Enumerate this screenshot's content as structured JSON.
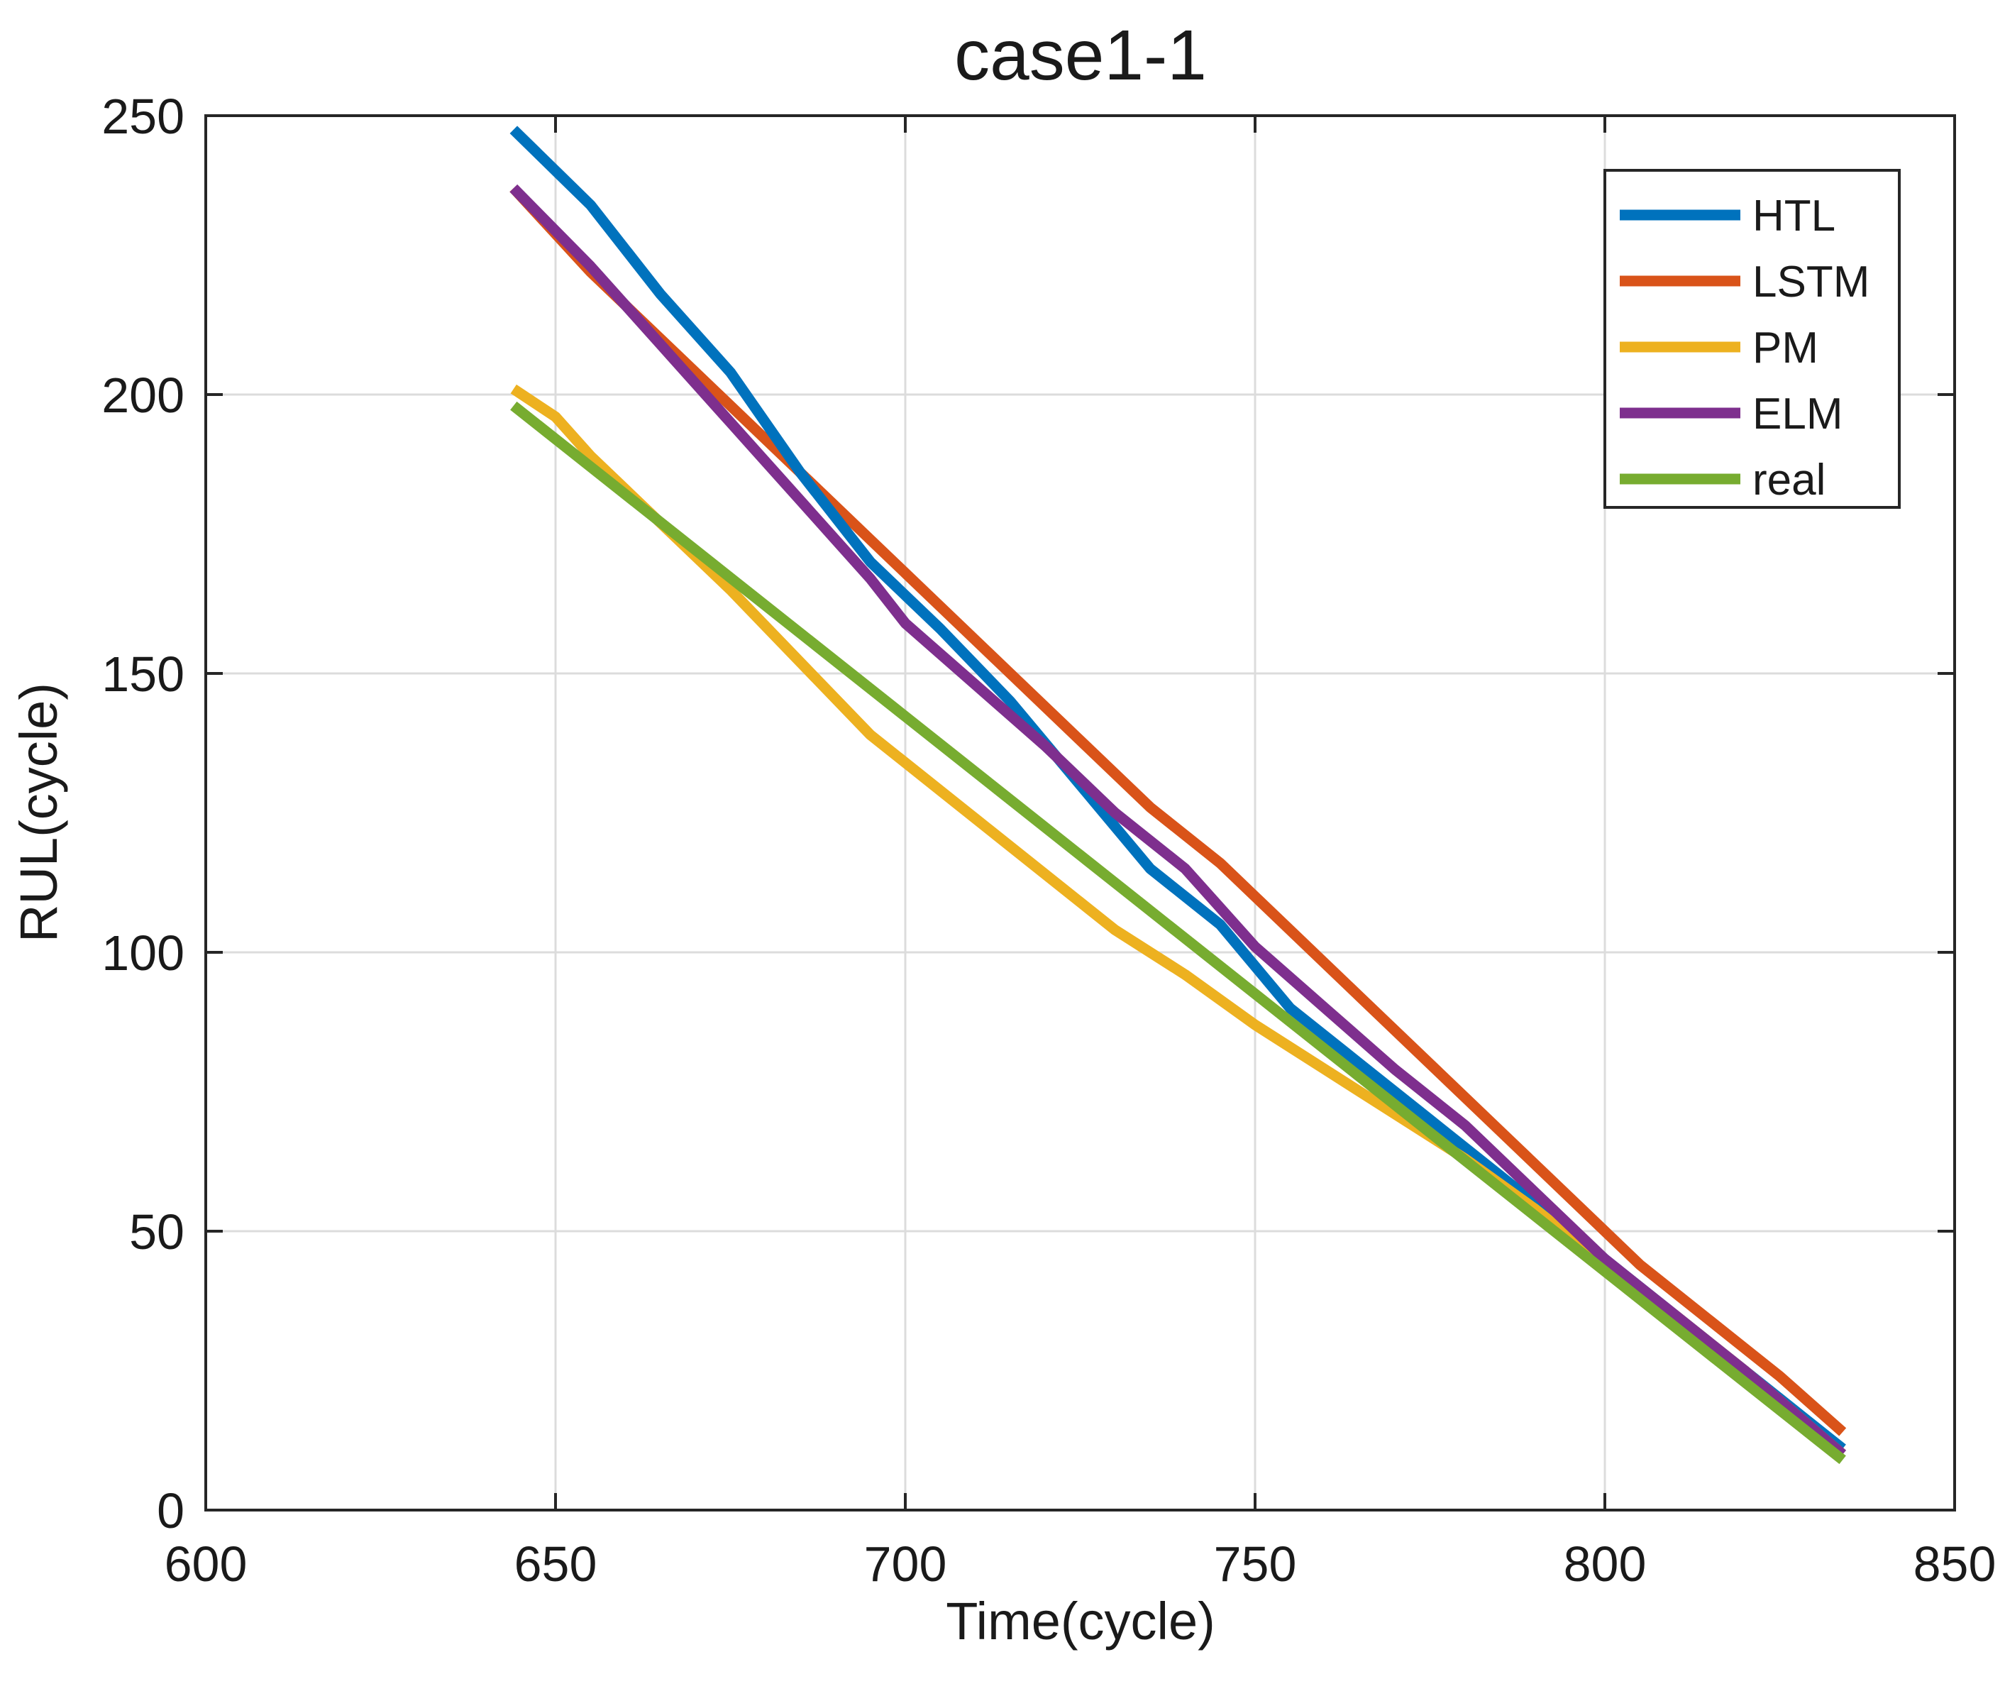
{
  "chart_data": {
    "type": "line",
    "title": "case1-1",
    "xlabel": "Time(cycle)",
    "ylabel": "RUL(cycle)",
    "xlim": [
      600,
      850
    ],
    "ylim": [
      0,
      250
    ],
    "xticks": [
      600,
      650,
      700,
      750,
      800,
      850
    ],
    "yticks": [
      0,
      50,
      100,
      150,
      200,
      250
    ],
    "grid": true,
    "legend_position": "top-right",
    "series": [
      {
        "name": "HTL",
        "color": "#0072BD",
        "points": [
          [
            644,
            247.5
          ],
          [
            655,
            234
          ],
          [
            665,
            218
          ],
          [
            675,
            204
          ],
          [
            685,
            186
          ],
          [
            695,
            170
          ],
          [
            705,
            158
          ],
          [
            715,
            145
          ],
          [
            725,
            130
          ],
          [
            735,
            115
          ],
          [
            745,
            105
          ],
          [
            755,
            90
          ],
          [
            765,
            80
          ],
          [
            775,
            70
          ],
          [
            785,
            60
          ],
          [
            795,
            50
          ],
          [
            805,
            40
          ],
          [
            815,
            30
          ],
          [
            825,
            20
          ],
          [
            834,
            11
          ]
        ]
      },
      {
        "name": "LSTM",
        "color": "#D95319",
        "points": [
          [
            644,
            237
          ],
          [
            655,
            222
          ],
          [
            665,
            210
          ],
          [
            675,
            198
          ],
          [
            685,
            186
          ],
          [
            695,
            174
          ],
          [
            705,
            162
          ],
          [
            715,
            150
          ],
          [
            725,
            138
          ],
          [
            735,
            126
          ],
          [
            745,
            116
          ],
          [
            755,
            104
          ],
          [
            765,
            92
          ],
          [
            775,
            80
          ],
          [
            785,
            68
          ],
          [
            795,
            56
          ],
          [
            805,
            44
          ],
          [
            815,
            34
          ],
          [
            825,
            24
          ],
          [
            834,
            14
          ]
        ]
      },
      {
        "name": "PM",
        "color": "#EDB120",
        "points": [
          [
            644,
            201
          ],
          [
            650,
            196
          ],
          [
            655,
            189
          ],
          [
            665,
            177
          ],
          [
            675,
            165
          ],
          [
            685,
            152
          ],
          [
            695,
            139
          ],
          [
            700,
            134
          ],
          [
            710,
            124
          ],
          [
            720,
            114
          ],
          [
            730,
            104
          ],
          [
            740,
            96
          ],
          [
            750,
            87
          ],
          [
            760,
            79
          ],
          [
            770,
            71
          ],
          [
            780,
            63
          ],
          [
            790,
            54
          ],
          [
            800,
            44
          ],
          [
            810,
            35
          ],
          [
            820,
            25
          ],
          [
            834,
            10
          ]
        ]
      },
      {
        "name": "ELM",
        "color": "#7E2F8E",
        "points": [
          [
            644,
            237
          ],
          [
            655,
            223
          ],
          [
            665,
            209
          ],
          [
            675,
            195
          ],
          [
            685,
            181
          ],
          [
            695,
            167
          ],
          [
            700,
            159
          ],
          [
            710,
            148
          ],
          [
            720,
            137
          ],
          [
            730,
            125
          ],
          [
            740,
            115
          ],
          [
            750,
            101
          ],
          [
            760,
            90
          ],
          [
            770,
            79
          ],
          [
            780,
            69
          ],
          [
            790,
            57
          ],
          [
            800,
            45
          ],
          [
            810,
            35
          ],
          [
            820,
            25
          ],
          [
            834,
            10
          ]
        ]
      },
      {
        "name": "real",
        "color": "#77AC30",
        "points": [
          [
            644,
            198
          ],
          [
            834,
            9
          ]
        ]
      }
    ]
  }
}
